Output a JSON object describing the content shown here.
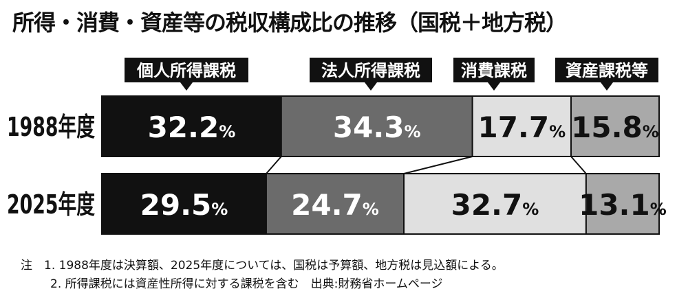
{
  "title": "所得・消費・資産等の税収構成比の推移（国税＋地方税）",
  "colors": {
    "individual": "#111111",
    "corporate": "#6b6b6b",
    "consumption": "#e0e0e0",
    "assets": "#a9a9a9"
  },
  "chart_data": {
    "type": "bar",
    "orientation": "horizontal-stacked-100",
    "unit": "%",
    "categories": [
      "1988年度",
      "2025年度"
    ],
    "series": [
      {
        "name": "個人所得課税",
        "values": [
          32.2,
          29.5
        ]
      },
      {
        "name": "法人所得課税",
        "values": [
          34.3,
          24.7
        ]
      },
      {
        "name": "消費課税",
        "values": [
          17.7,
          32.7
        ]
      },
      {
        "name": "資産課税等",
        "values": [
          15.8,
          13.1
        ]
      }
    ],
    "labels": [
      [
        "32.2",
        "34.3",
        "17.7",
        "15.8"
      ],
      [
        "29.5",
        "24.7",
        "32.7",
        "13.1"
      ]
    ],
    "legend_placement": "top, callouts above 1988 bar",
    "grid": false
  },
  "notes": {
    "line1": "注　1. 1988年度は決算額、2025年度については、国税は予算額、地方税は見込額による。",
    "line2": "2. 所得課税には資産性所得に対する課税を含む　出典:財務省ホームページ"
  }
}
